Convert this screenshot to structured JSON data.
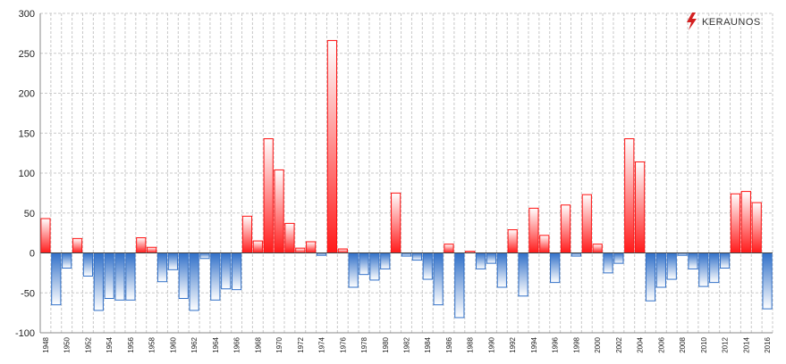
{
  "brand": {
    "name": "KERAUNOS",
    "accent_color": "#d32020"
  },
  "colors": {
    "positive": "#ff1010",
    "negative": "#2f6fc8",
    "grid": "#c8c8c8",
    "zero_line": "#444444"
  },
  "chart_data": {
    "type": "bar",
    "title": "",
    "xlabel": "",
    "ylabel": "",
    "ylim": [
      -100,
      300
    ],
    "yticks": [
      -100,
      -50,
      0,
      50,
      100,
      150,
      200,
      250,
      300
    ],
    "grid": true,
    "x": [
      1948,
      1949,
      1950,
      1951,
      1952,
      1953,
      1954,
      1955,
      1956,
      1957,
      1958,
      1959,
      1960,
      1961,
      1962,
      1963,
      1964,
      1965,
      1966,
      1967,
      1968,
      1969,
      1970,
      1971,
      1972,
      1973,
      1974,
      1975,
      1976,
      1977,
      1978,
      1979,
      1980,
      1981,
      1982,
      1983,
      1984,
      1985,
      1986,
      1987,
      1988,
      1989,
      1990,
      1991,
      1992,
      1993,
      1994,
      1995,
      1996,
      1997,
      1998,
      1999,
      2000,
      2001,
      2002,
      2003,
      2004,
      2005,
      2006,
      2007,
      2008,
      2009,
      2010,
      2011,
      2012,
      2013,
      2014,
      2015,
      2016
    ],
    "xtick_labels": [
      "1948",
      "1950",
      "1952",
      "1954",
      "1956",
      "1958",
      "1960",
      "1962",
      "1964",
      "1966",
      "1968",
      "1970",
      "1972",
      "1974",
      "1976",
      "1978",
      "1980",
      "1982",
      "1984",
      "1986",
      "1988",
      "1990",
      "1992",
      "1994",
      "1996",
      "1998",
      "2000",
      "2002",
      "2004",
      "2006",
      "2008",
      "2010",
      "2012",
      "2014",
      "2016"
    ],
    "values": [
      43,
      -65,
      -19,
      18,
      -29,
      -72,
      -57,
      -59,
      -59,
      19,
      7,
      -36,
      -21,
      -57,
      -72,
      -7,
      -59,
      -45,
      -46,
      46,
      15,
      143,
      104,
      37,
      6,
      14,
      -3,
      266,
      5,
      -43,
      -27,
      -34,
      -20,
      75,
      -4,
      -9,
      -33,
      -65,
      11,
      -81,
      2,
      -20,
      -13,
      -43,
      29,
      -54,
      56,
      22,
      -37,
      60,
      -4,
      73,
      11,
      -25,
      -13,
      143,
      114,
      -60,
      -43,
      -33,
      -3,
      -20,
      -42,
      -37,
      -19,
      74,
      77,
      63,
      -70
    ]
  }
}
